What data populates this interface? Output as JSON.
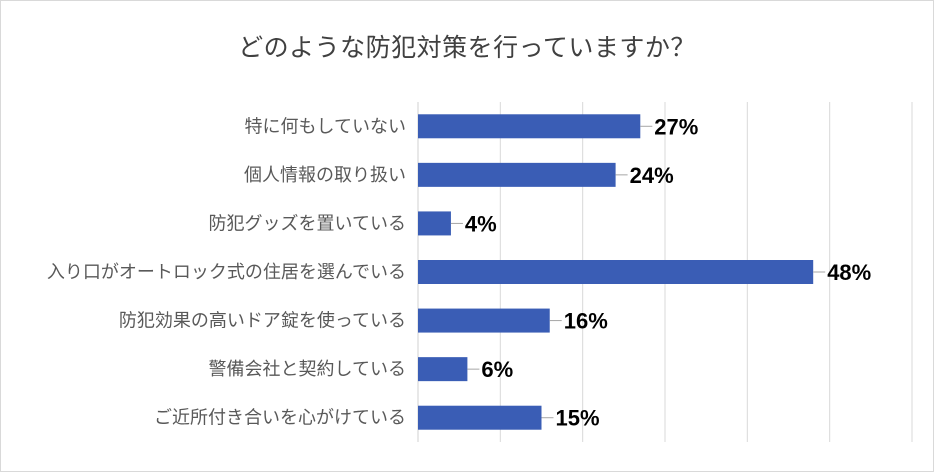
{
  "chart_data": {
    "type": "bar",
    "orientation": "horizontal",
    "title": "どのような防犯対策を行っていますか？",
    "categories": [
      "特に何もしていない",
      "個人情報の取り扱い",
      "防犯グッズを置いている",
      "入り口がオートロック式の住居を選んでいる",
      "防犯効果の高いドア錠を使っている",
      "警備会社と契約している",
      "ご近所付き合いを心がけている"
    ],
    "values": [
      27,
      24,
      4,
      48,
      16,
      6,
      15
    ],
    "value_labels": [
      "27%",
      "24%",
      "4%",
      "48%",
      "16%",
      "6%",
      "15%"
    ],
    "xlim": [
      0,
      60
    ],
    "grid": "vertical",
    "legend": "none",
    "bar_color": "#3a5db5",
    "gridline_color": "#d9d9d9"
  }
}
